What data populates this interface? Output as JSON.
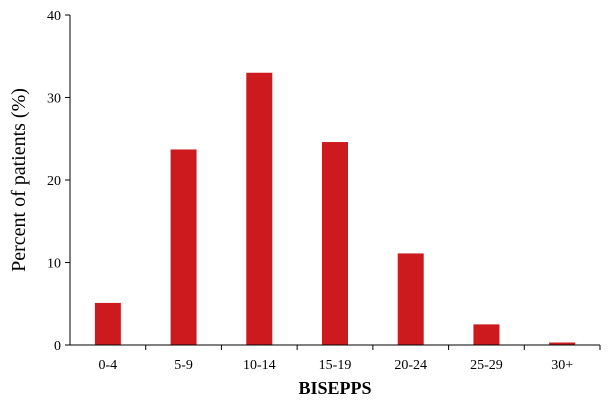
{
  "chart_data": {
    "type": "bar",
    "categories": [
      "0-4",
      "5-9",
      "10-14",
      "15-19",
      "20-24",
      "25-29",
      "30+"
    ],
    "values": [
      5.1,
      23.7,
      33.0,
      24.6,
      11.1,
      2.5,
      0.3
    ],
    "xlabel": "BISEPPS",
    "ylabel": "Percent of patients (%)",
    "ylim": [
      0,
      40
    ],
    "yticks": [
      0,
      10,
      20,
      30,
      40
    ],
    "bar_color": "#cc1a1f",
    "grid": false,
    "legend": "none"
  }
}
